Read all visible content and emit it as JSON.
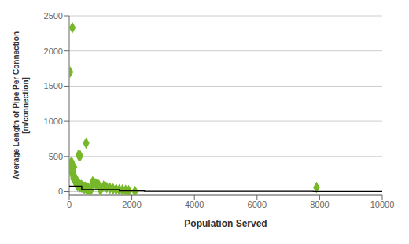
{
  "chart_data": {
    "type": "scatter",
    "xlabel": "Population Served",
    "ylabel": "Average Length of Pipe Per Connection\n[m/connection]",
    "xlim": [
      0,
      10000
    ],
    "ylim": [
      -50,
      2500
    ],
    "xticks": [
      0,
      2000,
      4000,
      6000,
      8000,
      10000
    ],
    "yticks": [
      0,
      500,
      1000,
      1500,
      2000,
      2500
    ],
    "grid": true,
    "series": [
      {
        "type": "scatter",
        "marker": "diamond",
        "color": "#76b82a",
        "x": [
          25,
          100,
          50,
          60,
          70,
          75,
          80,
          90,
          95,
          100,
          110,
          120,
          130,
          140,
          150,
          155,
          160,
          170,
          175,
          180,
          190,
          195,
          200,
          210,
          215,
          220,
          230,
          240,
          250,
          260,
          270,
          275,
          280,
          290,
          300,
          310,
          320,
          330,
          340,
          350,
          360,
          370,
          380,
          390,
          400,
          420,
          440,
          450,
          460,
          480,
          490,
          500,
          520,
          540,
          550,
          560,
          580,
          600,
          620,
          650,
          700,
          750,
          800,
          850,
          900,
          950,
          1000,
          1100,
          1150,
          1200,
          1300,
          1400,
          1500,
          1600,
          1700,
          1800,
          1900,
          2100,
          7900
        ],
        "values": [
          1700,
          2330,
          400,
          350,
          330,
          420,
          280,
          310,
          380,
          260,
          300,
          250,
          220,
          190,
          350,
          170,
          200,
          180,
          210,
          160,
          150,
          190,
          180,
          140,
          160,
          130,
          120,
          150,
          110,
          130,
          80,
          95,
          90,
          100,
          520,
          85,
          80,
          95,
          70,
          510,
          80,
          75,
          90,
          70,
          65,
          80,
          70,
          65,
          55,
          50,
          60,
          55,
          65,
          690,
          50,
          45,
          40,
          50,
          40,
          35,
          30,
          140,
          120,
          110,
          100,
          90,
          25,
          80,
          70,
          60,
          50,
          40,
          35,
          30,
          25,
          20,
          15,
          5,
          60
        ]
      },
      {
        "type": "line",
        "line_style": "solid",
        "color": "#000000",
        "x": [
          0,
          400,
          400,
          1600,
          1600,
          2400,
          2400,
          7800,
          7800,
          10000
        ],
        "values": [
          80,
          80,
          30,
          30,
          10,
          10,
          5,
          5,
          2,
          2
        ]
      }
    ]
  }
}
